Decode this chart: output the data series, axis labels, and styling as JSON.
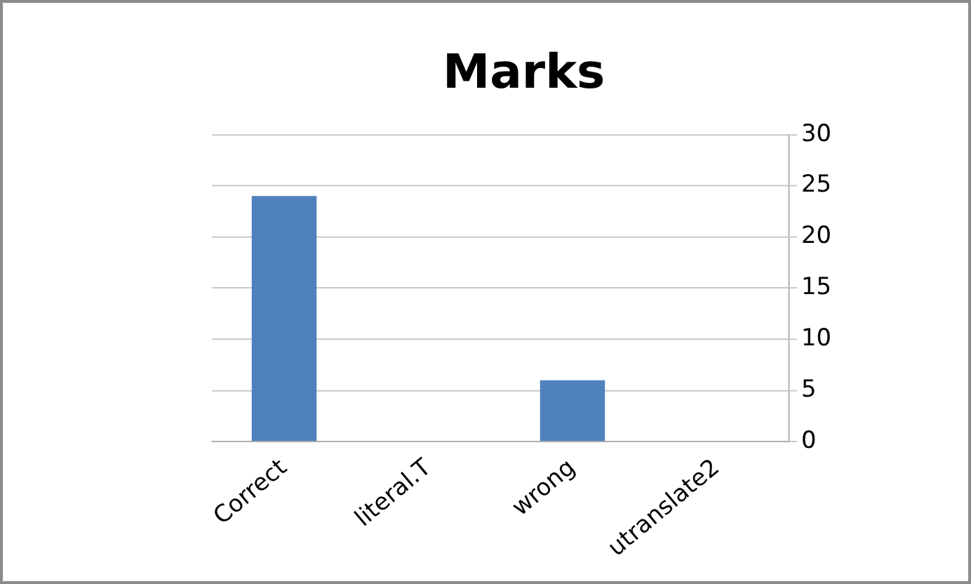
{
  "chart_data": {
    "type": "bar",
    "title": "Marks",
    "categories": [
      "Correct",
      "literal.T",
      "wrong",
      "utranslate2"
    ],
    "values": [
      24,
      0,
      6,
      0
    ],
    "color": "#4f81bd",
    "ylim": [
      0,
      30
    ],
    "yticks": [
      0,
      5,
      10,
      15,
      20,
      25,
      30
    ],
    "grid": "y"
  }
}
